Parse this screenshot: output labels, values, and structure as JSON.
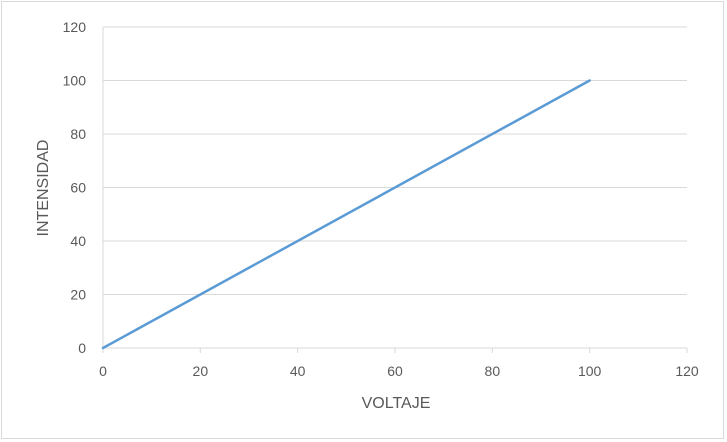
{
  "chart_data": {
    "type": "scatter",
    "title": "",
    "xlabel": "VOLTAJE",
    "ylabel": "INTENSIDAD",
    "xlim": [
      0,
      120
    ],
    "ylim": [
      0,
      120
    ],
    "x_ticks": [
      0,
      20,
      40,
      60,
      80,
      100,
      120
    ],
    "y_ticks": [
      0,
      20,
      40,
      60,
      80,
      100,
      120
    ],
    "grid": "horizontal",
    "legend": "none",
    "series": [
      {
        "color": "#5b9bd5",
        "x": [
          0,
          100
        ],
        "y": [
          0,
          100
        ],
        "style": "line"
      }
    ]
  }
}
